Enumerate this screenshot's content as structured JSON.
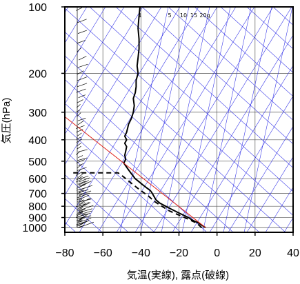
{
  "chart_data": {
    "type": "line",
    "xlabel": "気温(実線), 露点(破線)",
    "ylabel": "気圧(hPa)",
    "x_range": [
      -80,
      40
    ],
    "y_range": [
      1050,
      100
    ],
    "y_scale": "log",
    "x_ticks": [
      -80,
      -60,
      -40,
      -20,
      0,
      20,
      40
    ],
    "x_tick_labels": [
      "−80",
      "−60",
      "−40",
      "−20",
      "0",
      "20",
      "40"
    ],
    "y_ticks": [
      100,
      200,
      300,
      400,
      500,
      600,
      700,
      800,
      900,
      1000
    ],
    "mixing_ratio_labels": [
      "1",
      "5",
      "10",
      "15",
      "20g"
    ],
    "colors": {
      "grid": "#555555",
      "adiabat": "#2a2ae6",
      "parcel": "#e0231b",
      "profile": "#000000"
    },
    "series": [
      {
        "style": "solid",
        "points": [
          [
            -6,
            1000
          ],
          [
            -8,
            975
          ],
          [
            -10,
            950
          ],
          [
            -13,
            925
          ],
          [
            -15,
            900
          ],
          [
            -18,
            875
          ],
          [
            -21,
            850
          ],
          [
            -24,
            825
          ],
          [
            -27,
            800
          ],
          [
            -30,
            775
          ],
          [
            -32,
            750
          ],
          [
            -33,
            725
          ],
          [
            -34,
            700
          ],
          [
            -35,
            680
          ],
          [
            -37,
            660
          ],
          [
            -39,
            640
          ],
          [
            -41,
            620
          ],
          [
            -43,
            600
          ],
          [
            -45,
            570
          ],
          [
            -47,
            540
          ],
          [
            -49,
            510
          ],
          [
            -48,
            490
          ],
          [
            -48.5,
            470
          ],
          [
            -48,
            450
          ],
          [
            -47.5,
            430
          ],
          [
            -48.5,
            415
          ],
          [
            -47.5,
            400
          ],
          [
            -48.5,
            385
          ],
          [
            -47.5,
            370
          ],
          [
            -47,
            355
          ],
          [
            -46.5,
            340
          ],
          [
            -45,
            320
          ],
          [
            -44,
            300
          ],
          [
            -43.5,
            280
          ],
          [
            -44,
            260
          ],
          [
            -43,
            245
          ],
          [
            -42.5,
            230
          ],
          [
            -42.5,
            215
          ],
          [
            -41.5,
            200
          ],
          [
            -42,
            185
          ],
          [
            -41.5,
            170
          ],
          [
            -41,
            155
          ],
          [
            -41,
            140
          ],
          [
            -41.5,
            125
          ],
          [
            -41,
            110
          ],
          [
            -40.5,
            100
          ]
        ]
      },
      {
        "style": "dashed",
        "points": [
          [
            -8,
            1000
          ],
          [
            -11,
            950
          ],
          [
            -14,
            925
          ],
          [
            -17,
            900
          ],
          [
            -21,
            870
          ],
          [
            -25,
            840
          ],
          [
            -29,
            800
          ],
          [
            -33,
            760
          ],
          [
            -36,
            720
          ],
          [
            -39,
            690
          ],
          [
            -42,
            660
          ],
          [
            -46,
            620
          ],
          [
            -49,
            590
          ],
          [
            -52,
            565
          ],
          [
            -77,
            565
          ]
        ]
      },
      {
        "style": "parcel",
        "points": [
          [
            -6,
            1000
          ],
          [
            -83,
            300
          ]
        ]
      }
    ]
  }
}
